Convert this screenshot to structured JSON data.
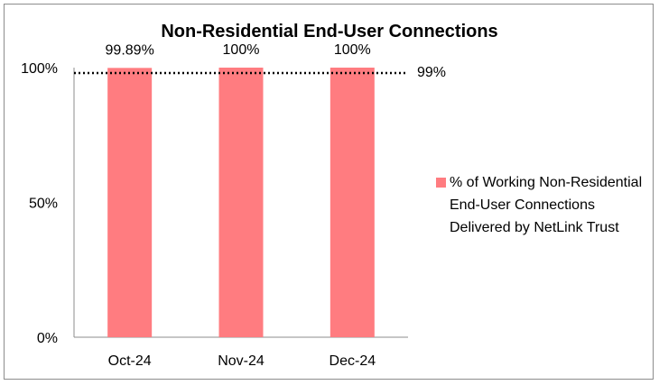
{
  "chart_data": {
    "type": "bar",
    "title": "Non-Residential End-User Connections",
    "categories": [
      "Oct-24",
      "Nov-24",
      "Dec-24"
    ],
    "series": [
      {
        "name": "% of Working Non-Residential End-User Connections Delivered by NetLink Trust",
        "values": [
          99.89,
          100,
          100
        ],
        "data_labels": [
          "99.89%",
          "100%",
          "100%"
        ],
        "color": "#ff7c80"
      }
    ],
    "y_ticks": [
      {
        "value": 0,
        "label": "0%"
      },
      {
        "value": 50,
        "label": "50%"
      },
      {
        "value": 100,
        "label": "100%"
      }
    ],
    "ylim": [
      0,
      100
    ],
    "target": {
      "value": 99,
      "label": "99%",
      "style": "dotted",
      "color": "#000000"
    },
    "grid": false,
    "legend_position": "right"
  }
}
